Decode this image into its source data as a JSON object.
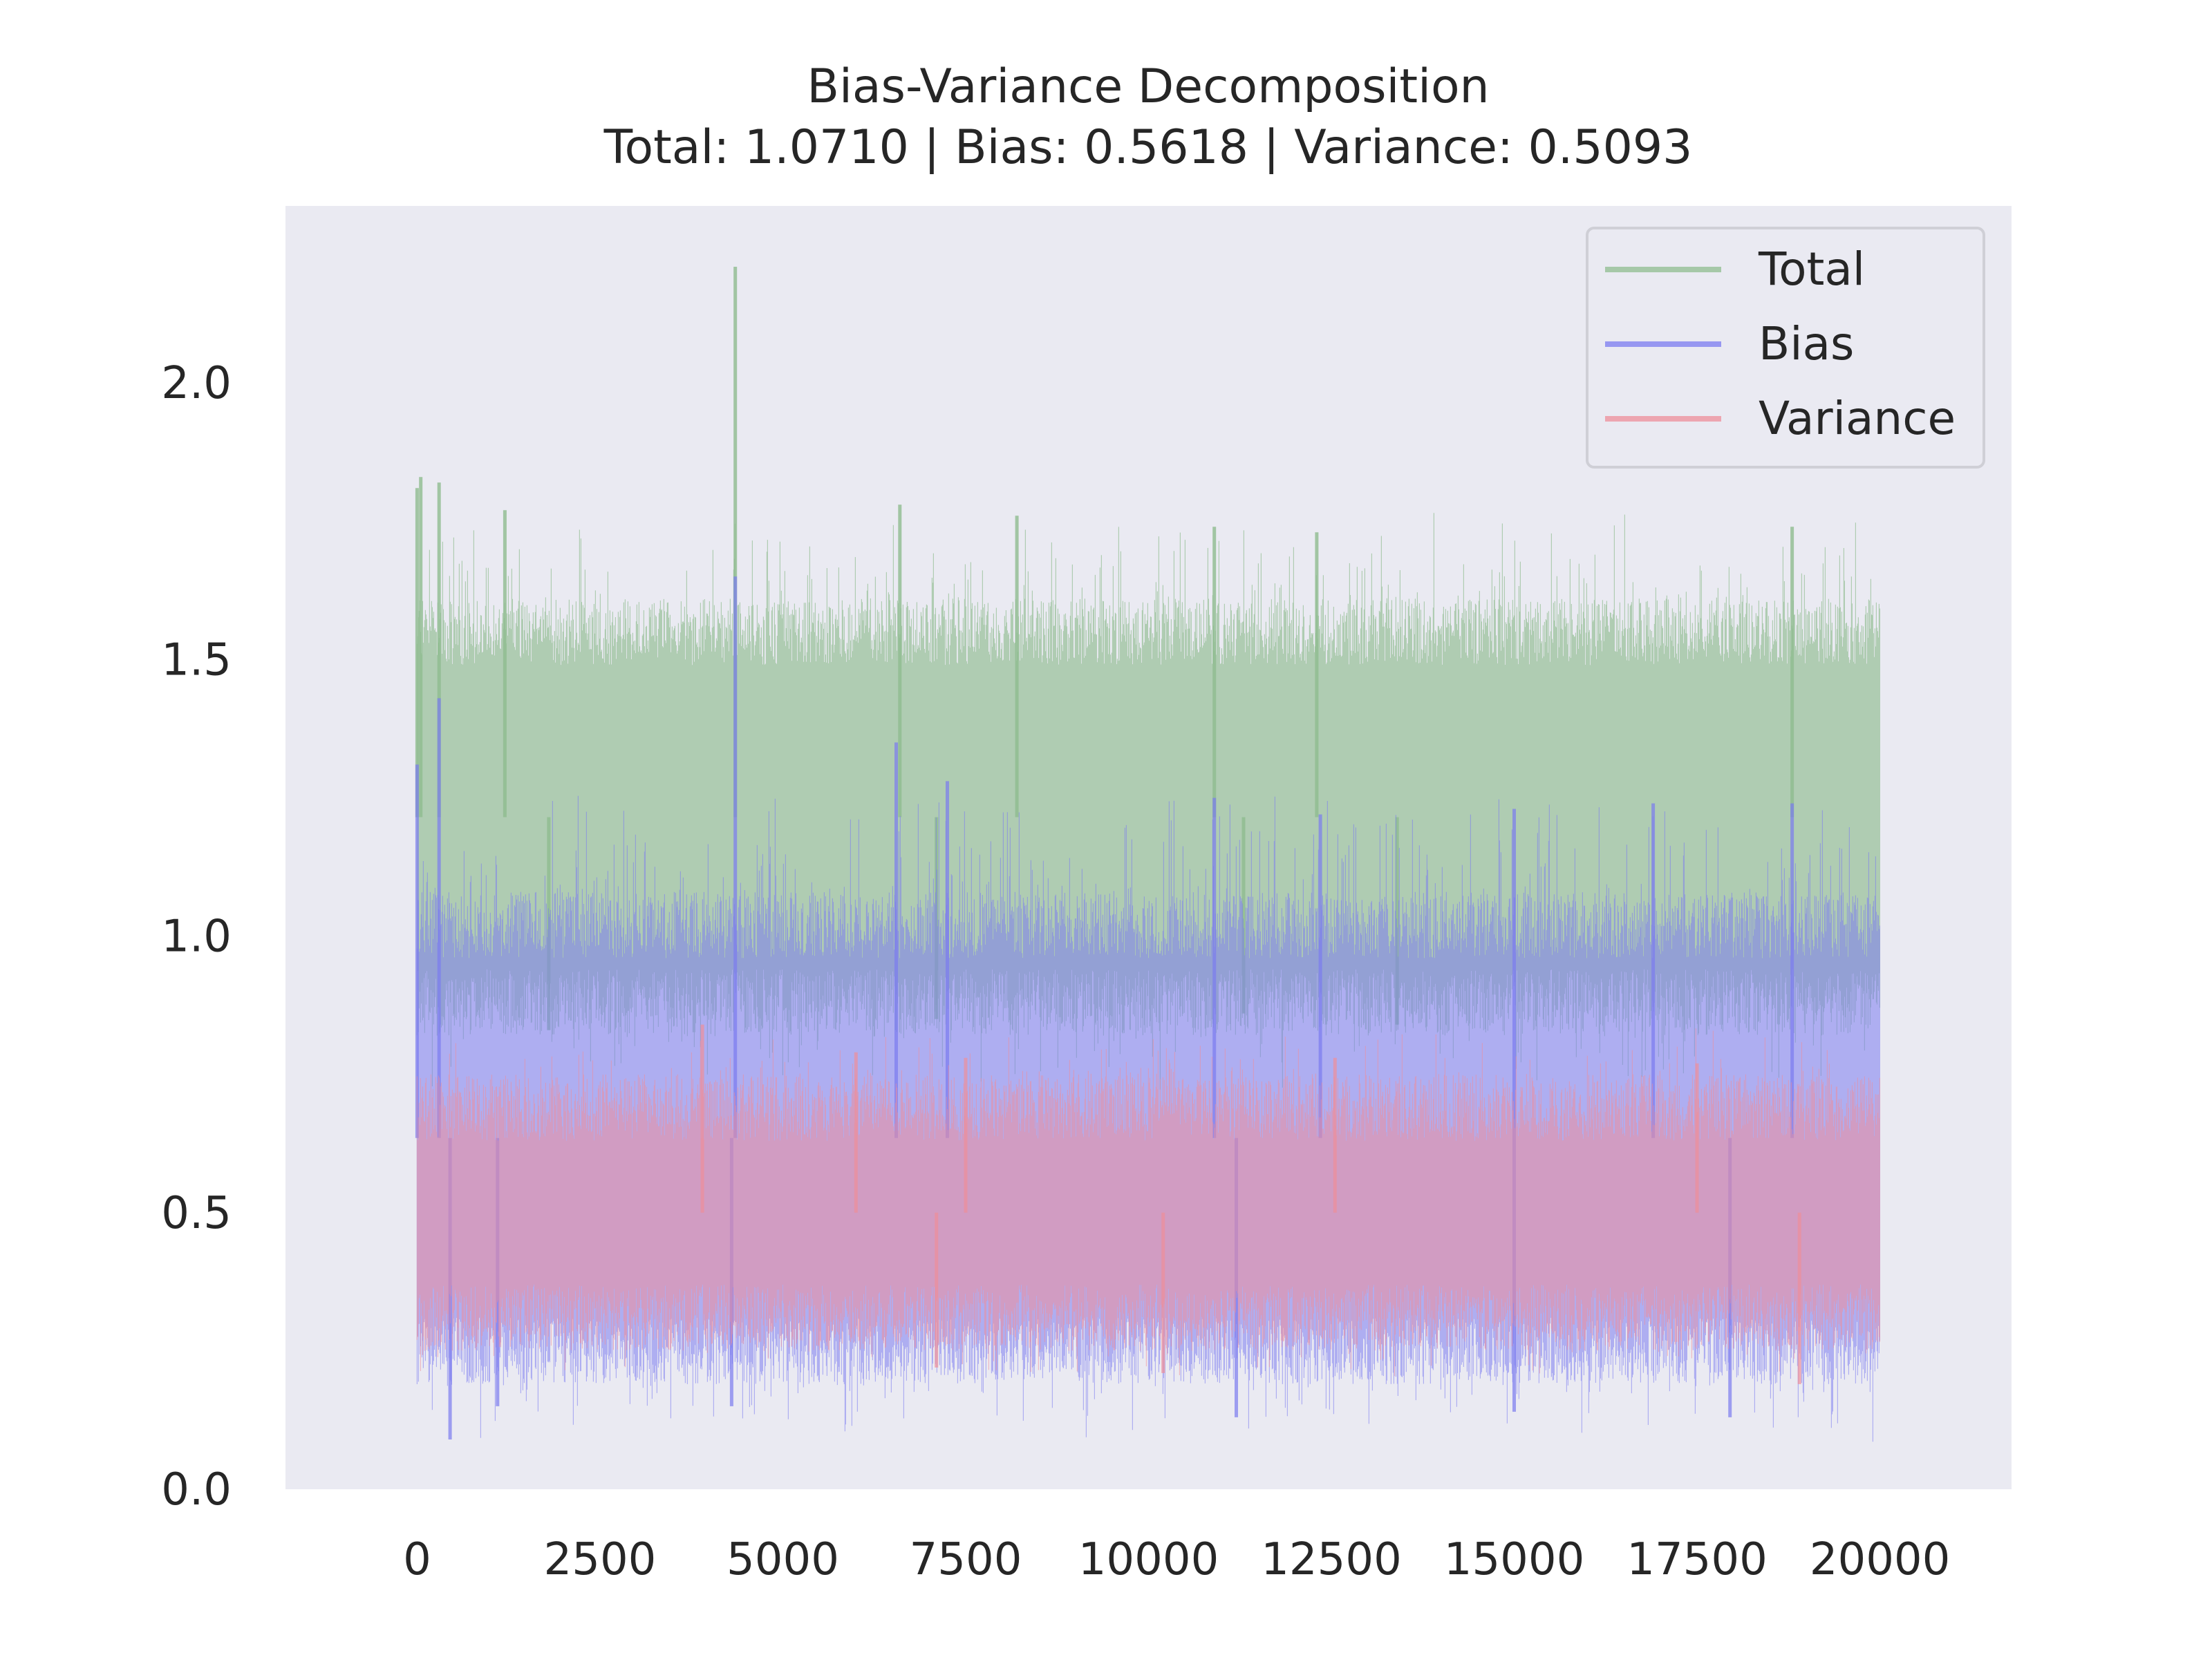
{
  "chart_data": {
    "type": "line",
    "title": "Bias-Variance Decomposition",
    "subtitle": "Total: 1.0710 | Bias: 0.5618 | Variance: 0.5093",
    "xlabel": "",
    "ylabel": "",
    "xlim": [
      -1800,
      21800
    ],
    "ylim": [
      0.0,
      2.32
    ],
    "x_ticks": [
      0,
      2500,
      5000,
      7500,
      10000,
      12500,
      15000,
      17500,
      20000
    ],
    "y_ticks": [
      0.0,
      0.5,
      1.0,
      1.5,
      2.0
    ],
    "x_tick_labels": [
      "0",
      "2500",
      "5000",
      "7500",
      "10000",
      "12500",
      "15000",
      "17500",
      "20000"
    ],
    "y_tick_labels": [
      "0.0",
      "0.5",
      "1.0",
      "1.5",
      "2.0"
    ],
    "grid": false,
    "legend_position": "top-right",
    "background": "#eaeaf2",
    "n_points": 20000,
    "series": [
      {
        "name": "Total",
        "color": "#8fbc8f",
        "opacity": 0.65,
        "band_low": 0.88,
        "band_high": 1.55,
        "peaks": [
          [
            0,
            1.81
          ],
          [
            50,
            1.83
          ],
          [
            300,
            1.82
          ],
          [
            1200,
            1.77
          ],
          [
            4350,
            2.21
          ],
          [
            6600,
            1.78
          ],
          [
            8200,
            1.76
          ],
          [
            10900,
            1.74
          ],
          [
            12300,
            1.73
          ],
          [
            18800,
            1.74
          ]
        ],
        "dips": [
          [
            1800,
            0.83
          ],
          [
            7100,
            0.85
          ],
          [
            11300,
            0.86
          ],
          [
            13400,
            0.84
          ]
        ]
      },
      {
        "name": "Bias",
        "color": "#7b7bf0",
        "opacity": 0.55,
        "band_low": 0.25,
        "band_high": 1.02,
        "peaks": [
          [
            0,
            1.31
          ],
          [
            300,
            1.43
          ],
          [
            4350,
            1.65
          ],
          [
            6550,
            1.35
          ],
          [
            7250,
            1.28
          ],
          [
            10900,
            1.25
          ],
          [
            12350,
            1.22
          ],
          [
            15000,
            1.23
          ],
          [
            16900,
            1.24
          ],
          [
            18800,
            1.24
          ]
        ],
        "dips": [
          [
            450,
            0.09
          ],
          [
            1100,
            0.15
          ],
          [
            4300,
            0.15
          ],
          [
            11200,
            0.13
          ],
          [
            15000,
            0.14
          ],
          [
            17950,
            0.13
          ]
        ]
      },
      {
        "name": "Variance",
        "color": "#ee8e9a",
        "opacity": 0.55,
        "band_low": 0.31,
        "band_high": 0.69,
        "peaks": [
          [
            3900,
            0.84
          ],
          [
            6000,
            0.79
          ],
          [
            7500,
            0.78
          ],
          [
            12550,
            0.78
          ],
          [
            17500,
            0.77
          ]
        ],
        "dips": [
          [
            7100,
            0.22
          ],
          [
            10200,
            0.21
          ],
          [
            18900,
            0.19
          ]
        ]
      }
    ]
  }
}
